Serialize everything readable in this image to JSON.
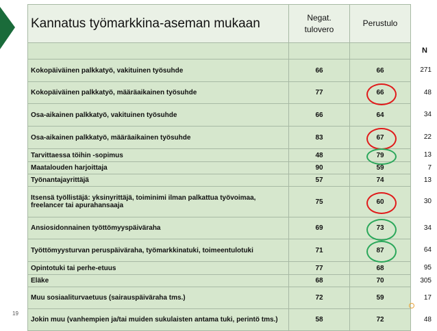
{
  "title": "Kannatus työmarkkina-aseman mukaan",
  "col_a": "Negat. tulovero",
  "col_a_line1": "Negat.",
  "col_a_line2": "tulovero",
  "col_b": "Perustulo",
  "n_header": "N",
  "slide_number": "19",
  "colors": {
    "accent": "#1a6b3a",
    "row_bg": "#d6e7cd",
    "header_bg": "#eaf1e6",
    "red_circle": "#e01a1a",
    "green_circle": "#2aa75a"
  },
  "rows": [
    {
      "label": "Kokopäiväinen palkkatyö, vakituinen työsuhde",
      "neg": "66",
      "pt": "66",
      "n": "271",
      "mark": ""
    },
    {
      "label": "Kokopäiväinen palkkatyö, määräaikainen työsuhde",
      "neg": "77",
      "pt": "66",
      "n": "48",
      "mark": "red"
    },
    {
      "label": "Osa-aikainen palkkatyö, vakituinen työsuhde",
      "neg": "66",
      "pt": "64",
      "n": "34",
      "mark": ""
    },
    {
      "label": "Osa-aikainen palkkatyö, määräaikainen työsuhde",
      "neg": "83",
      "pt": "67",
      "n": "22",
      "mark": "red"
    },
    {
      "label": "Tarvittaessa töihin -sopimus",
      "neg": "48",
      "pt": "79",
      "n": "13",
      "mark": "green"
    },
    {
      "label": "Maatalouden harjoittaja",
      "neg": "90",
      "pt": "59",
      "n": "7",
      "mark": ""
    },
    {
      "label": "Työnantajayrittäjä",
      "neg": "57",
      "pt": "74",
      "n": "13",
      "mark": ""
    },
    {
      "label": "Itsensä työllistäjä: yksinyrittäjä, toiminimi ilman palkattua työvoimaa, freelancer tai apurahansaaja",
      "neg": "75",
      "pt": "60",
      "n": "30",
      "mark": "red"
    },
    {
      "label": "Ansiosidonnainen työttömyyspäiväraha",
      "neg": "69",
      "pt": "73",
      "n": "34",
      "mark": "green"
    },
    {
      "label": "Työttömyysturvan peruspäiväraha, työmarkkinatuki, toimeentulotuki",
      "neg": "71",
      "pt": "87",
      "n": "64",
      "mark": "green"
    },
    {
      "label": "Opintotuki tai perhe-etuus",
      "neg": "77",
      "pt": "68",
      "n": "95",
      "mark": ""
    },
    {
      "label": "Eläke",
      "neg": "68",
      "pt": "70",
      "n": "305",
      "mark": ""
    },
    {
      "label": "Muu sosiaaliturvaetuus (sairauspäiväraha tms.)",
      "neg": "72",
      "pt": "59",
      "n": "17",
      "mark": ""
    },
    {
      "label": "Jokin muu (vanhempien ja/tai muiden sukulaisten antama tuki, perintö tms.)",
      "neg": "58",
      "pt": "72",
      "n": "48",
      "mark": ""
    }
  ]
}
